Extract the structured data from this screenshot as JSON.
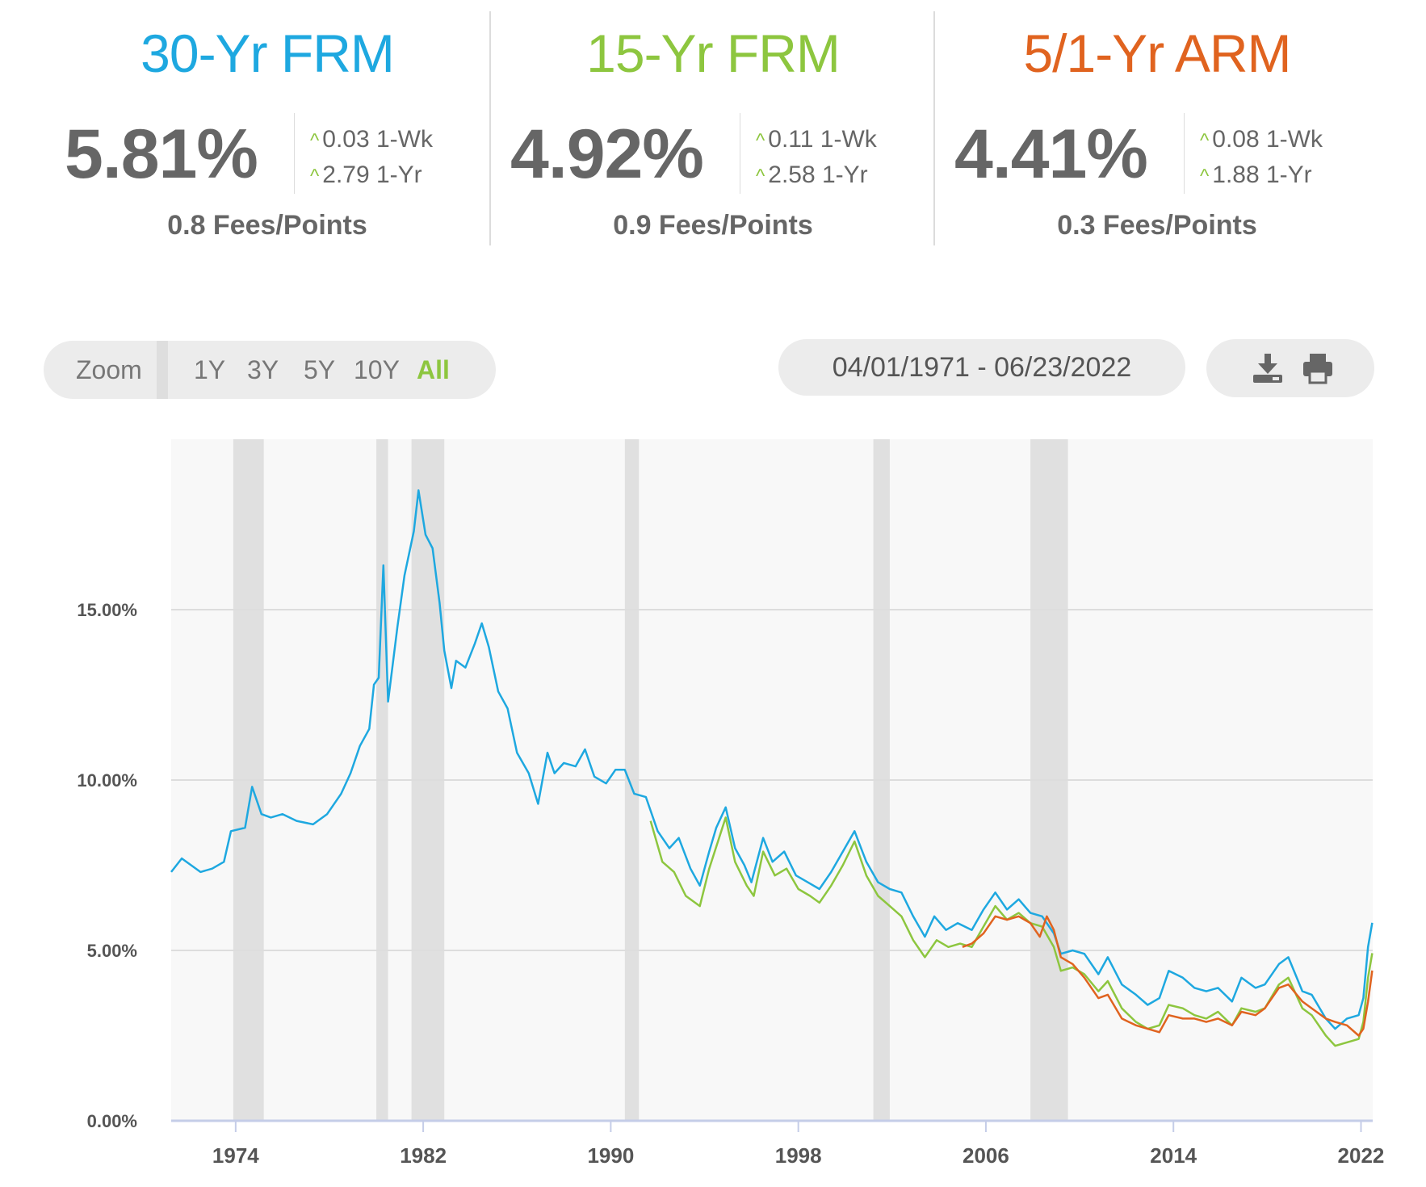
{
  "summary": [
    {
      "title": "30-Yr FRM",
      "color": "#1ea8e0",
      "rate": "5.81%",
      "wk": "0.03 1-Wk",
      "yr": "2.79 1-Yr",
      "fees": "0.8 Fees/Points"
    },
    {
      "title": "15-Yr FRM",
      "color": "#8dc63f",
      "rate": "4.92%",
      "wk": "0.11 1-Wk",
      "yr": "2.58 1-Yr",
      "fees": "0.9 Fees/Points"
    },
    {
      "title": "5/1-Yr ARM",
      "color": "#e0631f",
      "rate": "4.41%",
      "wk": "0.08 1-Wk",
      "yr": "1.88 1-Yr",
      "fees": "0.3 Fees/Points"
    }
  ],
  "controls": {
    "zoom_label": "Zoom",
    "zoom_options": [
      "1Y",
      "3Y",
      "5Y",
      "10Y",
      "All"
    ],
    "active_zoom": "All",
    "date_range": "04/01/1971 - 06/23/2022",
    "download_icon": "download-icon",
    "print_icon": "print-icon"
  },
  "chart_data": {
    "type": "line",
    "xlim": [
      1971.25,
      2022.5
    ],
    "ylim": [
      0,
      20
    ],
    "x_ticks": [
      "1974",
      "1982",
      "1990",
      "1998",
      "2006",
      "2014",
      "2022"
    ],
    "y_ticks": [
      "0.00%",
      "5.00%",
      "10.00%",
      "15.00%"
    ],
    "grid": true,
    "recessions": [
      [
        1973.9,
        1975.2
      ],
      [
        1980.0,
        1980.5
      ],
      [
        1981.5,
        1982.9
      ],
      [
        1990.6,
        1991.2
      ],
      [
        2001.2,
        2001.9
      ],
      [
        2007.9,
        2009.5
      ]
    ],
    "series": [
      {
        "color": "#1ea8e0",
        "points": [
          [
            1971.25,
            7.3
          ],
          [
            1971.7,
            7.7
          ],
          [
            1972.5,
            7.3
          ],
          [
            1973.0,
            7.4
          ],
          [
            1973.5,
            7.6
          ],
          [
            1973.8,
            8.5
          ],
          [
            1974.4,
            8.6
          ],
          [
            1974.7,
            9.8
          ],
          [
            1975.1,
            9.0
          ],
          [
            1975.5,
            8.9
          ],
          [
            1976.0,
            9.0
          ],
          [
            1976.6,
            8.8
          ],
          [
            1977.3,
            8.7
          ],
          [
            1977.9,
            9.0
          ],
          [
            1978.5,
            9.6
          ],
          [
            1978.9,
            10.2
          ],
          [
            1979.3,
            11.0
          ],
          [
            1979.7,
            11.5
          ],
          [
            1979.9,
            12.8
          ],
          [
            1980.1,
            13.0
          ],
          [
            1980.3,
            16.3
          ],
          [
            1980.5,
            12.3
          ],
          [
            1980.9,
            14.5
          ],
          [
            1981.2,
            16.0
          ],
          [
            1981.6,
            17.3
          ],
          [
            1981.8,
            18.5
          ],
          [
            1982.1,
            17.2
          ],
          [
            1982.4,
            16.8
          ],
          [
            1982.7,
            15.2
          ],
          [
            1982.9,
            13.8
          ],
          [
            1983.2,
            12.7
          ],
          [
            1983.4,
            13.5
          ],
          [
            1983.8,
            13.3
          ],
          [
            1984.2,
            14.0
          ],
          [
            1984.5,
            14.6
          ],
          [
            1984.8,
            13.9
          ],
          [
            1985.2,
            12.6
          ],
          [
            1985.6,
            12.1
          ],
          [
            1986.0,
            10.8
          ],
          [
            1986.5,
            10.2
          ],
          [
            1986.9,
            9.3
          ],
          [
            1987.3,
            10.8
          ],
          [
            1987.6,
            10.2
          ],
          [
            1988.0,
            10.5
          ],
          [
            1988.5,
            10.4
          ],
          [
            1988.9,
            10.9
          ],
          [
            1989.3,
            10.1
          ],
          [
            1989.8,
            9.9
          ],
          [
            1990.2,
            10.3
          ],
          [
            1990.6,
            10.3
          ],
          [
            1991.0,
            9.6
          ],
          [
            1991.5,
            9.5
          ],
          [
            1992.0,
            8.5
          ],
          [
            1992.5,
            8.0
          ],
          [
            1992.9,
            8.3
          ],
          [
            1993.4,
            7.4
          ],
          [
            1993.8,
            6.9
          ],
          [
            1994.2,
            7.9
          ],
          [
            1994.5,
            8.6
          ],
          [
            1994.9,
            9.2
          ],
          [
            1995.3,
            8.0
          ],
          [
            1995.7,
            7.5
          ],
          [
            1996.0,
            7.0
          ],
          [
            1996.5,
            8.3
          ],
          [
            1996.9,
            7.6
          ],
          [
            1997.4,
            7.9
          ],
          [
            1997.9,
            7.2
          ],
          [
            1998.4,
            7.0
          ],
          [
            1998.9,
            6.8
          ],
          [
            1999.4,
            7.3
          ],
          [
            1999.9,
            7.9
          ],
          [
            2000.4,
            8.5
          ],
          [
            2000.9,
            7.6
          ],
          [
            2001.4,
            7.0
          ],
          [
            2001.9,
            6.8
          ],
          [
            2002.4,
            6.7
          ],
          [
            2002.9,
            6.0
          ],
          [
            2003.4,
            5.4
          ],
          [
            2003.8,
            6.0
          ],
          [
            2004.3,
            5.6
          ],
          [
            2004.8,
            5.8
          ],
          [
            2005.4,
            5.6
          ],
          [
            2005.9,
            6.2
          ],
          [
            2006.4,
            6.7
          ],
          [
            2006.9,
            6.2
          ],
          [
            2007.4,
            6.5
          ],
          [
            2007.9,
            6.1
          ],
          [
            2008.4,
            6.0
          ],
          [
            2008.9,
            5.5
          ],
          [
            2009.2,
            4.9
          ],
          [
            2009.7,
            5.0
          ],
          [
            2010.2,
            4.9
          ],
          [
            2010.8,
            4.3
          ],
          [
            2011.2,
            4.8
          ],
          [
            2011.8,
            4.0
          ],
          [
            2012.4,
            3.7
          ],
          [
            2012.9,
            3.4
          ],
          [
            2013.4,
            3.6
          ],
          [
            2013.8,
            4.4
          ],
          [
            2014.4,
            4.2
          ],
          [
            2014.9,
            3.9
          ],
          [
            2015.4,
            3.8
          ],
          [
            2015.9,
            3.9
          ],
          [
            2016.5,
            3.5
          ],
          [
            2016.9,
            4.2
          ],
          [
            2017.5,
            3.9
          ],
          [
            2017.9,
            4.0
          ],
          [
            2018.5,
            4.6
          ],
          [
            2018.9,
            4.8
          ],
          [
            2019.5,
            3.8
          ],
          [
            2019.9,
            3.7
          ],
          [
            2020.5,
            3.0
          ],
          [
            2020.9,
            2.7
          ],
          [
            2021.4,
            3.0
          ],
          [
            2021.9,
            3.1
          ],
          [
            2022.1,
            3.6
          ],
          [
            2022.3,
            5.1
          ],
          [
            2022.48,
            5.81
          ]
        ]
      },
      {
        "color": "#8dc63f",
        "points": [
          [
            1991.7,
            8.8
          ],
          [
            1992.2,
            7.6
          ],
          [
            1992.7,
            7.3
          ],
          [
            1993.2,
            6.6
          ],
          [
            1993.8,
            6.3
          ],
          [
            1994.2,
            7.4
          ],
          [
            1994.9,
            8.9
          ],
          [
            1995.3,
            7.6
          ],
          [
            1995.8,
            6.9
          ],
          [
            1996.1,
            6.6
          ],
          [
            1996.5,
            7.9
          ],
          [
            1997.0,
            7.2
          ],
          [
            1997.5,
            7.4
          ],
          [
            1998.0,
            6.8
          ],
          [
            1998.5,
            6.6
          ],
          [
            1998.9,
            6.4
          ],
          [
            1999.4,
            6.9
          ],
          [
            1999.9,
            7.5
          ],
          [
            2000.4,
            8.2
          ],
          [
            2000.9,
            7.2
          ],
          [
            2001.4,
            6.6
          ],
          [
            2001.9,
            6.3
          ],
          [
            2002.4,
            6.0
          ],
          [
            2002.9,
            5.3
          ],
          [
            2003.4,
            4.8
          ],
          [
            2003.9,
            5.3
          ],
          [
            2004.4,
            5.1
          ],
          [
            2004.9,
            5.2
          ],
          [
            2005.4,
            5.1
          ],
          [
            2005.9,
            5.7
          ],
          [
            2006.4,
            6.3
          ],
          [
            2006.9,
            5.9
          ],
          [
            2007.4,
            6.1
          ],
          [
            2007.9,
            5.8
          ],
          [
            2008.4,
            5.7
          ],
          [
            2008.9,
            5.1
          ],
          [
            2009.2,
            4.4
          ],
          [
            2009.7,
            4.5
          ],
          [
            2010.2,
            4.3
          ],
          [
            2010.8,
            3.8
          ],
          [
            2011.2,
            4.1
          ],
          [
            2011.8,
            3.3
          ],
          [
            2012.4,
            2.9
          ],
          [
            2012.9,
            2.7
          ],
          [
            2013.4,
            2.8
          ],
          [
            2013.8,
            3.4
          ],
          [
            2014.4,
            3.3
          ],
          [
            2014.9,
            3.1
          ],
          [
            2015.4,
            3.0
          ],
          [
            2015.9,
            3.2
          ],
          [
            2016.5,
            2.8
          ],
          [
            2016.9,
            3.3
          ],
          [
            2017.5,
            3.2
          ],
          [
            2017.9,
            3.3
          ],
          [
            2018.5,
            4.0
          ],
          [
            2018.9,
            4.2
          ],
          [
            2019.5,
            3.3
          ],
          [
            2019.9,
            3.1
          ],
          [
            2020.5,
            2.5
          ],
          [
            2020.9,
            2.2
          ],
          [
            2021.4,
            2.3
          ],
          [
            2021.9,
            2.4
          ],
          [
            2022.1,
            2.9
          ],
          [
            2022.3,
            4.2
          ],
          [
            2022.48,
            4.92
          ]
        ]
      },
      {
        "color": "#e0631f",
        "points": [
          [
            2005.0,
            5.1
          ],
          [
            2005.4,
            5.2
          ],
          [
            2005.9,
            5.5
          ],
          [
            2006.4,
            6.0
          ],
          [
            2006.9,
            5.9
          ],
          [
            2007.4,
            6.0
          ],
          [
            2007.9,
            5.8
          ],
          [
            2008.3,
            5.4
          ],
          [
            2008.6,
            6.0
          ],
          [
            2008.9,
            5.6
          ],
          [
            2009.2,
            4.8
          ],
          [
            2009.7,
            4.6
          ],
          [
            2010.2,
            4.2
          ],
          [
            2010.8,
            3.6
          ],
          [
            2011.2,
            3.7
          ],
          [
            2011.8,
            3.0
          ],
          [
            2012.4,
            2.8
          ],
          [
            2012.9,
            2.7
          ],
          [
            2013.4,
            2.6
          ],
          [
            2013.8,
            3.1
          ],
          [
            2014.4,
            3.0
          ],
          [
            2014.9,
            3.0
          ],
          [
            2015.4,
            2.9
          ],
          [
            2015.9,
            3.0
          ],
          [
            2016.5,
            2.8
          ],
          [
            2016.9,
            3.2
          ],
          [
            2017.5,
            3.1
          ],
          [
            2017.9,
            3.3
          ],
          [
            2018.5,
            3.9
          ],
          [
            2018.9,
            4.0
          ],
          [
            2019.5,
            3.5
          ],
          [
            2019.9,
            3.3
          ],
          [
            2020.5,
            3.0
          ],
          [
            2020.9,
            2.9
          ],
          [
            2021.4,
            2.8
          ],
          [
            2021.9,
            2.5
          ],
          [
            2022.1,
            2.7
          ],
          [
            2022.3,
            3.5
          ],
          [
            2022.48,
            4.41
          ]
        ]
      }
    ]
  }
}
